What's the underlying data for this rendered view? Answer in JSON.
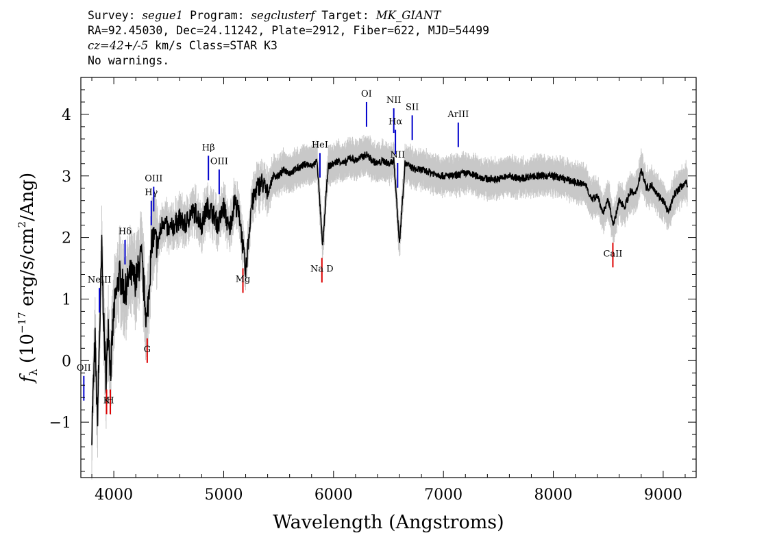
{
  "header": {
    "survey_label": "Survey: ",
    "survey": "segue1",
    "program_label": " Program: ",
    "program": "segclusterf",
    "target_label": " Target: ",
    "target": "MK_GIANT",
    "line2": "RA=92.45030, Dec=24.11242, Plate=2912, Fiber=622, MJD=54499",
    "cz_label": "cz=42+/-5",
    "line3_rest": " km/s Class=STAR K3",
    "line4": "No warnings."
  },
  "chart_data": {
    "type": "line",
    "xlabel": "Wavelength (Angstroms)",
    "ylabel": "f_λ (10^-17 erg/s/cm^2/Ang)",
    "xlim": [
      3700,
      9300
    ],
    "ylim": [
      -1.9,
      4.6
    ],
    "xticks": [
      4000,
      5000,
      6000,
      7000,
      8000,
      9000
    ],
    "xtick_labels": [
      "4000",
      "5000",
      "6000",
      "7000",
      "8000",
      "9000"
    ],
    "yticks": [
      -1,
      0,
      1,
      2,
      3,
      4
    ],
    "ytick_labels": [
      "−1",
      "0",
      "1",
      "2",
      "3",
      "4"
    ],
    "grid": false,
    "series": [
      {
        "color": "#000000",
        "x": [
          3800,
          3830,
          3850,
          3870,
          3890,
          3910,
          3930,
          3950,
          3970,
          4000,
          4050,
          4100,
          4150,
          4200,
          4250,
          4300,
          4350,
          4400,
          4450,
          4500,
          4550,
          4600,
          4650,
          4700,
          4750,
          4800,
          4850,
          4900,
          4950,
          5000,
          5050,
          5100,
          5150,
          5200,
          5250,
          5300,
          5350,
          5400,
          5450,
          5500,
          5550,
          5600,
          5650,
          5700,
          5750,
          5800,
          5850,
          5900,
          5950,
          6000,
          6050,
          6100,
          6150,
          6200,
          6250,
          6300,
          6350,
          6400,
          6450,
          6500,
          6550,
          6600,
          6650,
          6700,
          6750,
          6800,
          6900,
          7000,
          7100,
          7200,
          7300,
          7400,
          7500,
          7600,
          7700,
          7800,
          7900,
          8000,
          8100,
          8200,
          8300,
          8350,
          8400,
          8450,
          8500,
          8550,
          8600,
          8650,
          8700,
          8750,
          8800,
          8850,
          8900,
          8950,
          9000,
          9050,
          9100,
          9150,
          9200,
          9220
        ],
        "values": [
          -1.1,
          0.3,
          -1.0,
          0.4,
          1.8,
          0.5,
          -0.3,
          0.6,
          -0.2,
          0.8,
          1.4,
          1.1,
          1.4,
          1.3,
          1.7,
          0.6,
          2.0,
          1.9,
          2.3,
          2.1,
          2.2,
          2.3,
          2.2,
          2.4,
          2.4,
          2.2,
          2.5,
          2.4,
          2.2,
          2.5,
          2.1,
          2.6,
          2.3,
          1.4,
          2.5,
          2.8,
          2.9,
          2.7,
          3.0,
          3.0,
          3.1,
          3.05,
          3.1,
          3.15,
          3.2,
          3.15,
          3.25,
          1.85,
          3.15,
          3.2,
          3.25,
          3.2,
          3.3,
          3.25,
          3.3,
          3.35,
          3.25,
          3.2,
          3.25,
          3.2,
          3.25,
          1.9,
          3.2,
          3.15,
          3.1,
          3.1,
          3.05,
          3.0,
          3.0,
          3.05,
          3.0,
          2.95,
          2.95,
          3.0,
          2.95,
          3.0,
          3.0,
          3.0,
          2.95,
          2.9,
          2.85,
          2.6,
          2.7,
          2.4,
          2.6,
          2.2,
          2.6,
          2.5,
          2.75,
          2.7,
          3.1,
          2.8,
          2.85,
          2.7,
          2.6,
          2.4,
          2.7,
          2.8,
          2.9,
          2.85
        ]
      }
    ],
    "lines": [
      {
        "label": "NeIII",
        "wavelength": 3869,
        "kind": "emission"
      },
      {
        "label": "Hδ",
        "wavelength": 4102,
        "kind": "emission"
      },
      {
        "label": "Hγ",
        "wavelength": 4341,
        "kind": "emission"
      },
      {
        "label": "OIII",
        "wavelength": 4363,
        "kind": "emission"
      },
      {
        "label": "Hβ",
        "wavelength": 4861,
        "kind": "emission"
      },
      {
        "label": "OIII",
        "wavelength": 4959,
        "kind": "emission"
      },
      {
        "label": "HeI",
        "wavelength": 5876,
        "kind": "emission"
      },
      {
        "label": "OI",
        "wavelength": 6300,
        "kind": "emission"
      },
      {
        "label": "NII",
        "wavelength": 6548,
        "kind": "emission"
      },
      {
        "label": "Hα",
        "wavelength": 6563,
        "kind": "emission"
      },
      {
        "label": "NII",
        "wavelength": 6583,
        "kind": "emission"
      },
      {
        "label": "SII",
        "wavelength": 6716,
        "kind": "emission"
      },
      {
        "label": "ArIII",
        "wavelength": 7135,
        "kind": "emission"
      },
      {
        "label": "OII",
        "wavelength": 3727,
        "kind": "emission"
      },
      {
        "label": "K",
        "wavelength": 3934,
        "kind": "absorption"
      },
      {
        "label": "H",
        "wavelength": 3968,
        "kind": "absorption"
      },
      {
        "label": "G",
        "wavelength": 4304,
        "kind": "absorption"
      },
      {
        "label": "Mg",
        "wavelength": 5175,
        "kind": "absorption"
      },
      {
        "label": "Na D",
        "wavelength": 5894,
        "kind": "absorption"
      },
      {
        "label": "CaII",
        "wavelength": 8542,
        "kind": "absorption"
      }
    ],
    "colors": {
      "spectrum": "#000000",
      "error": "#c8c8c8",
      "emission": "#0000cc",
      "absorption": "#dd0000"
    }
  }
}
